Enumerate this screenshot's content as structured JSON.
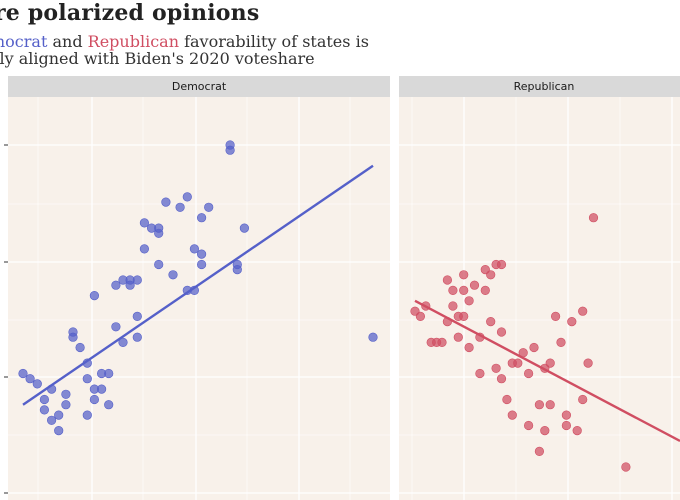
{
  "title": "re polarized opinions",
  "subtitle": {
    "line1_lead": "mocrat",
    "line1_mid": " and ",
    "line1_rep": "Republican",
    "line1_tail": " favorability of states is",
    "line2": "ely aligned with Biden's 2020 voteshare"
  },
  "colors": {
    "democrat": "#5560c9",
    "republican": "#d04e62",
    "panel_bg": "#f8f1ea",
    "strip_bg": "#d9d9d9",
    "grid": "#ffffff"
  },
  "chart_data": [
    {
      "type": "scatter",
      "facet": "Democrat",
      "color": "#5560c9",
      "grid": true,
      "points": [
        [
          0.33,
          31
        ],
        [
          0.34,
          30
        ],
        [
          0.35,
          29
        ],
        [
          0.36,
          24
        ],
        [
          0.36,
          26
        ],
        [
          0.37,
          22
        ],
        [
          0.37,
          28
        ],
        [
          0.38,
          20
        ],
        [
          0.38,
          23
        ],
        [
          0.39,
          25
        ],
        [
          0.39,
          27
        ],
        [
          0.4,
          38
        ],
        [
          0.4,
          39
        ],
        [
          0.41,
          36
        ],
        [
          0.42,
          33
        ],
        [
          0.42,
          30
        ],
        [
          0.42,
          23
        ],
        [
          0.43,
          46
        ],
        [
          0.43,
          26
        ],
        [
          0.43,
          28
        ],
        [
          0.44,
          31
        ],
        [
          0.44,
          28
        ],
        [
          0.45,
          31
        ],
        [
          0.45,
          25
        ],
        [
          0.46,
          48
        ],
        [
          0.46,
          40
        ],
        [
          0.47,
          37
        ],
        [
          0.47,
          49
        ],
        [
          0.48,
          49
        ],
        [
          0.48,
          48
        ],
        [
          0.49,
          42
        ],
        [
          0.49,
          38
        ],
        [
          0.49,
          49
        ],
        [
          0.5,
          55
        ],
        [
          0.5,
          60
        ],
        [
          0.51,
          59
        ],
        [
          0.52,
          58
        ],
        [
          0.52,
          52
        ],
        [
          0.52,
          59
        ],
        [
          0.53,
          64
        ],
        [
          0.54,
          50
        ],
        [
          0.55,
          63
        ],
        [
          0.56,
          47
        ],
        [
          0.56,
          65
        ],
        [
          0.57,
          47
        ],
        [
          0.57,
          55
        ],
        [
          0.58,
          61
        ],
        [
          0.58,
          52
        ],
        [
          0.58,
          54
        ],
        [
          0.59,
          63
        ],
        [
          0.62,
          74
        ],
        [
          0.62,
          75
        ],
        [
          0.63,
          52
        ],
        [
          0.63,
          51
        ],
        [
          0.64,
          59
        ],
        [
          0.82,
          38
        ]
      ],
      "trend": [
        [
          0.33,
          25
        ],
        [
          0.82,
          71
        ]
      ]
    },
    {
      "type": "scatter",
      "facet": "Republican",
      "color": "#d04e62",
      "grid": true,
      "points": [
        [
          0.33,
          43
        ],
        [
          0.34,
          42
        ],
        [
          0.35,
          44
        ],
        [
          0.36,
          37
        ],
        [
          0.37,
          37
        ],
        [
          0.38,
          37
        ],
        [
          0.39,
          49
        ],
        [
          0.39,
          41
        ],
        [
          0.4,
          44
        ],
        [
          0.4,
          47
        ],
        [
          0.41,
          38
        ],
        [
          0.41,
          42
        ],
        [
          0.42,
          47
        ],
        [
          0.42,
          50
        ],
        [
          0.42,
          42
        ],
        [
          0.43,
          45
        ],
        [
          0.43,
          36
        ],
        [
          0.44,
          48
        ],
        [
          0.45,
          31
        ],
        [
          0.45,
          38
        ],
        [
          0.46,
          51
        ],
        [
          0.46,
          47
        ],
        [
          0.47,
          41
        ],
        [
          0.47,
          50
        ],
        [
          0.48,
          52
        ],
        [
          0.48,
          32
        ],
        [
          0.49,
          52
        ],
        [
          0.49,
          39
        ],
        [
          0.49,
          30
        ],
        [
          0.5,
          26
        ],
        [
          0.51,
          23
        ],
        [
          0.51,
          33
        ],
        [
          0.52,
          33
        ],
        [
          0.53,
          35
        ],
        [
          0.54,
          31
        ],
        [
          0.54,
          21
        ],
        [
          0.55,
          36
        ],
        [
          0.56,
          16
        ],
        [
          0.56,
          25
        ],
        [
          0.57,
          32
        ],
        [
          0.57,
          20
        ],
        [
          0.58,
          25
        ],
        [
          0.58,
          33
        ],
        [
          0.59,
          42
        ],
        [
          0.6,
          37
        ],
        [
          0.61,
          23
        ],
        [
          0.61,
          21
        ],
        [
          0.62,
          41
        ],
        [
          0.63,
          20
        ],
        [
          0.64,
          26
        ],
        [
          0.64,
          43
        ],
        [
          0.65,
          33
        ],
        [
          0.66,
          61
        ],
        [
          0.72,
          13
        ]
      ],
      "trend": [
        [
          0.33,
          45
        ],
        [
          0.82,
          18
        ]
      ]
    }
  ],
  "facets": {
    "democrat_label": "Democrat",
    "republican_label": "Republican"
  }
}
